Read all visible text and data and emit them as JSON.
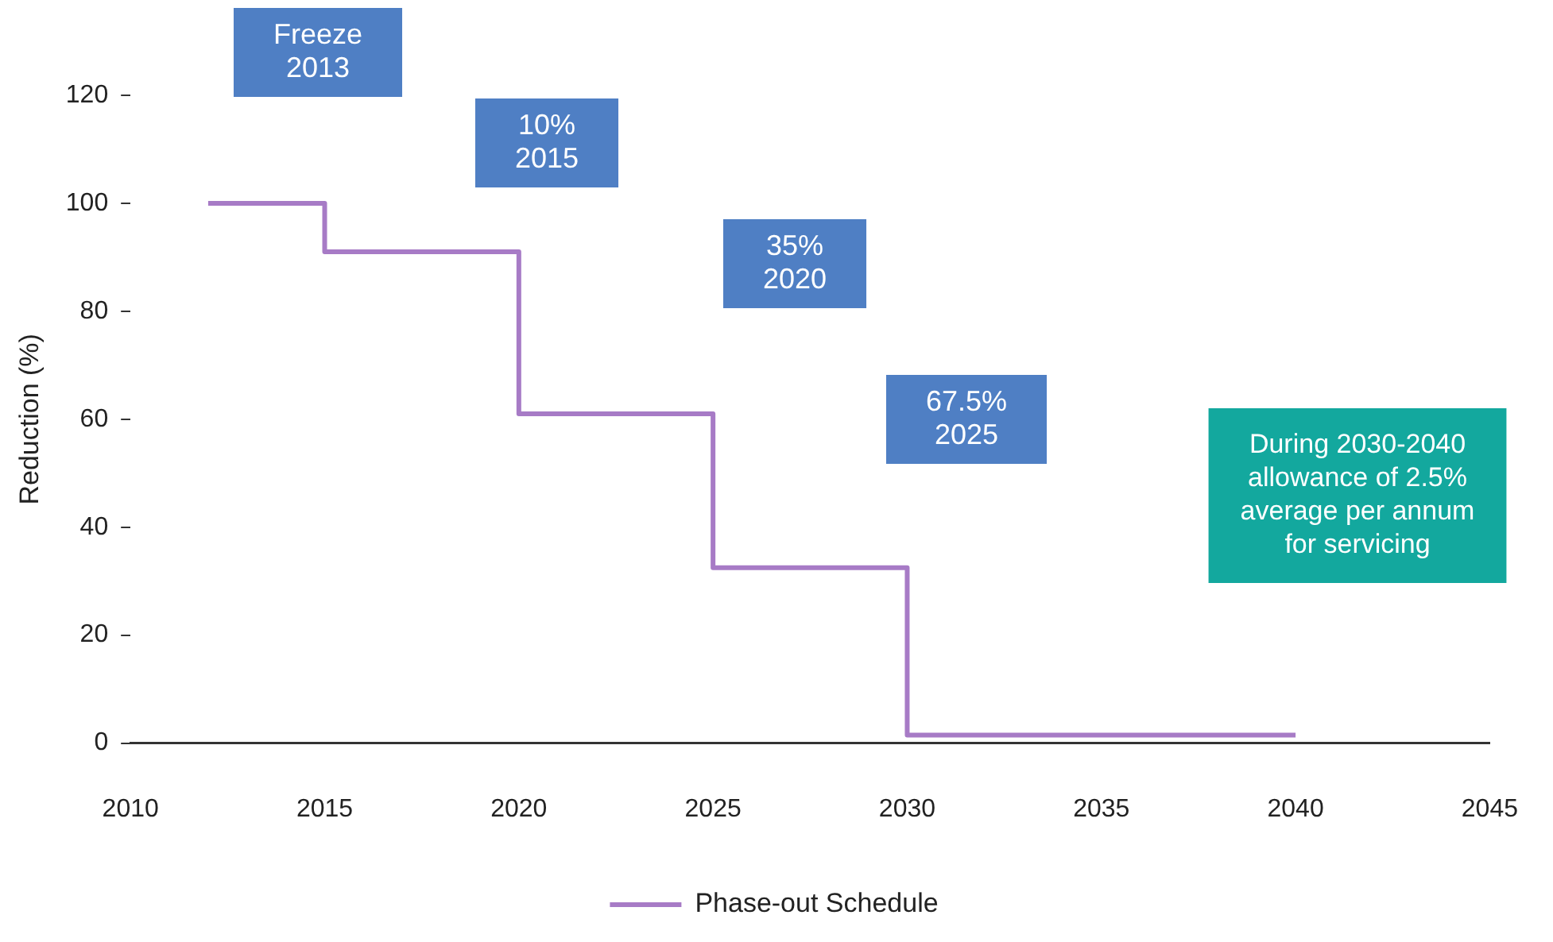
{
  "chart_data": {
    "type": "step",
    "ylabel": "Reduction (%)",
    "x": [
      2012,
      2015,
      2020,
      2025,
      2030,
      2040
    ],
    "series": [
      {
        "name": "Phase-out Schedule",
        "color": "#a77bc6",
        "values": [
          100,
          91,
          61,
          32.5,
          1.5,
          1.5
        ]
      }
    ],
    "xlim": [
      2010,
      2045
    ],
    "xticks": [
      2010,
      2015,
      2020,
      2025,
      2030,
      2035,
      2040,
      2045
    ],
    "ylim": [
      0,
      120
    ],
    "yticks": [
      0,
      20,
      40,
      60,
      80,
      100,
      120
    ],
    "grid": false,
    "legend": "bottom",
    "marker": "none",
    "line_style": "solid",
    "annotations": [
      "Freeze\n2013",
      "10%\n2015",
      "35%\n2020",
      "67.5%\n2025",
      "During 2030-2040\nallowance of 2.5%\naverage per annum\nfor servicing"
    ]
  }
}
